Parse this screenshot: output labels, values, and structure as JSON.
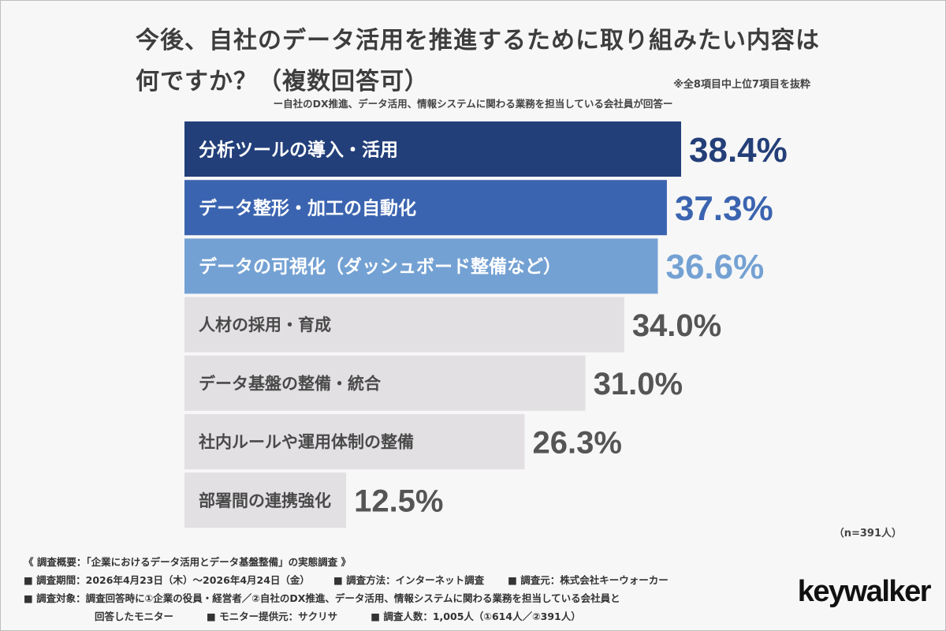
{
  "title_line1": "今後、自社のデータ活用を推進するために取り組みたい内容は",
  "title_line2": "何ですか？（複数回答可）",
  "note": "※全8項目中上位7項目を抜粋",
  "subtitle": "ー自社のDX推進、データ活用、情報システムに関わる業務を担当している会社員が回答ー",
  "chart_data": {
    "type": "bar",
    "orientation": "horizontal",
    "categories": [
      "分析ツールの導入・活用",
      "データ整形・加工の自動化",
      "データの可視化（ダッシュボード整備など）",
      "人材の採用・育成",
      "データ基盤の整備・統合",
      "社内ルールや運用体制の整備",
      "部署間の連携強化"
    ],
    "values": [
      38.4,
      37.3,
      36.6,
      34.0,
      31.0,
      26.3,
      12.5
    ],
    "value_labels": [
      "38.4%",
      "37.3%",
      "36.6%",
      "34.0%",
      "31.0%",
      "26.3%",
      "12.5%"
    ],
    "bar_colors": [
      "#223f7a",
      "#3b64b0",
      "#74a1d3",
      "#e3e0e3",
      "#e3e0e3",
      "#e3e0e3",
      "#e3e0e3"
    ],
    "label_colors": [
      "#ffffff",
      "#ffffff",
      "#ffffff",
      "#4a4a4a",
      "#4a4a4a",
      "#4a4a4a",
      "#4a4a4a"
    ],
    "value_colors": [
      "#243f78",
      "#3b64b0",
      "#74a1d3",
      "#555555",
      "#555555",
      "#555555",
      "#555555"
    ]
  },
  "n_label": "（n=391人）",
  "footer": {
    "line1": "《 調査概要：「企業におけるデータ活用とデータ基盤整備」の実態調査 》",
    "period": "■ 調査期間：2026年4月23日（木）〜2026年4月24日（金）",
    "method": "■ 調査方法：インターネット調査",
    "source": "■ 調査元：株式会社キーウォーカー",
    "target_a": "■ 調査対象：調査回答時に①企業の役員・経営者／②自社のDX推進、データ活用、情報システムに関わる業務を担当している会社員と",
    "target_b": "回答したモニター",
    "provider": "■ モニター提供元：サクリサ",
    "count": "■ 調査人数：1,005人（①614人／②391人）"
  },
  "logo": "keywalker"
}
